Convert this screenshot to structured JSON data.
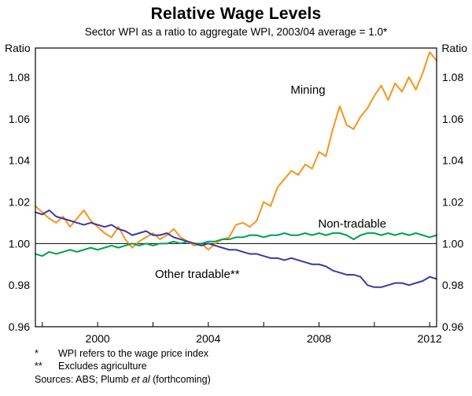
{
  "page": {
    "title": "Relative Wage Levels",
    "subtitle": "Sector WPI as a ratio to aggregate WPI, 2003/04 average = 1.0*"
  },
  "footnotes": [
    {
      "marker": "*",
      "text": "WPI refers to the wage price index"
    },
    {
      "marker": "**",
      "text": "Excludes agriculture"
    }
  ],
  "sources": {
    "prefix": "Sources: ABS; Plumb ",
    "italic": "et al",
    "suffix": " (forthcoming)"
  },
  "chart_data": {
    "type": "line",
    "title": "Relative Wage Levels",
    "subtitle": "Sector WPI as a ratio to aggregate WPI, 2003/04 average = 1.0*",
    "ylabel_left": "Ratio",
    "ylabel_right": "Ratio",
    "ylim": [
      0.96,
      1.094
    ],
    "yticks": [
      0.96,
      0.98,
      1.0,
      1.02,
      1.04,
      1.06,
      1.08
    ],
    "xlim": [
      1997.75,
      2012.25
    ],
    "xticks": [
      2000,
      2004,
      2008,
      2012
    ],
    "x_minor_ticks": [
      1998,
      2000,
      2002,
      2004,
      2006,
      2008,
      2010,
      2012
    ],
    "x_start": 1997.75,
    "x_step": 0.25,
    "baseline": 1.0,
    "grid": false,
    "legend_position": "inline-labels",
    "series": [
      {
        "name": "Mining",
        "color": "#F7941D",
        "label_x": 2007.6,
        "label_y": 1.074,
        "values": [
          1.018,
          1.015,
          1.012,
          1.01,
          1.013,
          1.008,
          1.012,
          1.016,
          1.011,
          1.008,
          1.005,
          1.003,
          1.008,
          1.002,
          0.998,
          1.001,
          1.003,
          1.005,
          1.002,
          1.004,
          1.007,
          1.003,
          1.001,
          0.999,
          1.0,
          0.997,
          1.0,
          1.002,
          1.003,
          1.009,
          1.01,
          1.008,
          1.011,
          1.02,
          1.018,
          1.027,
          1.031,
          1.035,
          1.033,
          1.038,
          1.036,
          1.044,
          1.042,
          1.055,
          1.066,
          1.057,
          1.055,
          1.061,
          1.065,
          1.071,
          1.076,
          1.069,
          1.077,
          1.073,
          1.08,
          1.074,
          1.082,
          1.092,
          1.088
        ]
      },
      {
        "name": "Non-tradable",
        "color": "#00A04E",
        "label_x": 2009.2,
        "label_y": 1.0095,
        "values": [
          0.995,
          0.994,
          0.996,
          0.995,
          0.996,
          0.997,
          0.996,
          0.997,
          0.998,
          0.997,
          0.998,
          0.999,
          0.998,
          0.999,
          1.0,
          0.999,
          1.0,
          0.999,
          1.0,
          1.0,
          1.001,
          1.0,
          1.001,
          1.0,
          1.0,
          1.001,
          1.001,
          1.002,
          1.002,
          1.003,
          1.003,
          1.004,
          1.004,
          1.003,
          1.004,
          1.004,
          1.005,
          1.004,
          1.004,
          1.005,
          1.004,
          1.005,
          1.004,
          1.005,
          1.005,
          1.004,
          1.002,
          1.004,
          1.005,
          1.005,
          1.004,
          1.005,
          1.004,
          1.005,
          1.004,
          1.005,
          1.004,
          1.003,
          1.004
        ]
      },
      {
        "name": "Other tradable**",
        "color": "#3A3AA0",
        "label_x": 2003.6,
        "label_y": 0.9853,
        "values": [
          1.015,
          1.014,
          1.016,
          1.013,
          1.012,
          1.011,
          1.01,
          1.009,
          1.01,
          1.009,
          1.008,
          1.009,
          1.007,
          1.006,
          1.004,
          1.005,
          1.006,
          1.004,
          1.004,
          1.005,
          1.003,
          1.002,
          1.001,
          1.0,
          0.999,
          1.0,
          0.999,
          0.998,
          0.997,
          0.997,
          0.996,
          0.995,
          0.995,
          0.994,
          0.993,
          0.993,
          0.992,
          0.993,
          0.992,
          0.991,
          0.99,
          0.99,
          0.989,
          0.987,
          0.986,
          0.985,
          0.985,
          0.984,
          0.98,
          0.979,
          0.979,
          0.98,
          0.981,
          0.981,
          0.98,
          0.981,
          0.982,
          0.984,
          0.983
        ]
      }
    ]
  }
}
